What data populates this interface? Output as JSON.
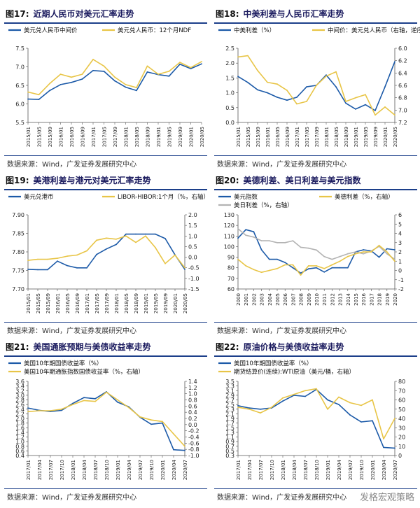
{
  "source": "数据来源：Wind，广发证券发展研究中心",
  "watermark": "发格宏观策略",
  "colors": {
    "blue": "#1c5aa8",
    "gold": "#e8c547",
    "gray": "#b3b3b3",
    "rule": "#1c3f8a"
  },
  "panels": [
    {
      "fig": "图17:",
      "title": "近期人民币对美元汇率走势",
      "legend": [
        "美元兑人民币中间价",
        "美元兑人民币：12个月NDF"
      ],
      "chart_data": {
        "type": "line",
        "x": [
          "2015/01",
          "2015/05",
          "2015/09",
          "2016/01",
          "2016/05",
          "2016/09",
          "2017/01",
          "2017/05",
          "2017/09",
          "2018/01",
          "2018/05",
          "2018/09",
          "2019/01",
          "2019/05",
          "2019/09",
          "2020/01",
          "2020/05"
        ],
        "xticks": [
          "2015/01",
          "2015/05",
          "2015/09",
          "2016/01",
          "2016/05",
          "2016/09",
          "2017/01",
          "2017/05",
          "2017/09",
          "2018/01",
          "2018/05",
          "2018/09",
          "2019/01",
          "2019/05",
          "2019/09",
          "2020/01",
          "2020/05"
        ],
        "ylim": [
          5.5,
          7.5
        ],
        "yticks": [
          5.5,
          6.0,
          6.5,
          7.0,
          7.5
        ],
        "series": [
          {
            "name": "美元兑人民币中间价",
            "color": "blue",
            "axis": "left",
            "values": [
              6.13,
              6.12,
              6.36,
              6.52,
              6.58,
              6.67,
              6.9,
              6.88,
              6.62,
              6.45,
              6.36,
              6.86,
              6.79,
              6.75,
              7.07,
              6.95,
              7.08
            ]
          },
          {
            "name": "美元兑人民币：12个月NDF",
            "color": "gold",
            "axis": "left",
            "values": [
              6.32,
              6.25,
              6.55,
              6.8,
              6.72,
              6.8,
              7.2,
              7.02,
              6.72,
              6.52,
              6.44,
              7.02,
              6.8,
              6.88,
              7.12,
              6.98,
              7.14
            ]
          }
        ]
      }
    },
    {
      "fig": "图18:",
      "title": "中美利差与人民币汇率走势",
      "legend": [
        "中美利差（%）",
        "中间价：美元兑人民币（右轴，逆序）"
      ],
      "chart_data": {
        "type": "line",
        "x": [
          "2015/01",
          "2015/05",
          "2015/09",
          "2016/01",
          "2016/05",
          "2016/09",
          "2017/01",
          "2017/05",
          "2017/09",
          "2018/01",
          "2018/05",
          "2018/09",
          "2019/01",
          "2019/05",
          "2019/09",
          "2020/01",
          "2020/05"
        ],
        "xticks": [
          "2015/01",
          "2015/05",
          "2015/09",
          "2016/01",
          "2016/05",
          "2016/09",
          "2017/01",
          "2017/05",
          "2017/09",
          "2018/01",
          "2018/05",
          "2018/09",
          "2019/01",
          "2019/05",
          "2019/09",
          "2020/01",
          "2020/05"
        ],
        "ylim": [
          0.0,
          2.5
        ],
        "yticks": [
          0.0,
          0.5,
          1.0,
          1.5,
          2.0,
          2.5
        ],
        "y2lim": [
          7.2,
          6.0
        ],
        "y2ticks": [
          6.0,
          6.2,
          6.4,
          6.6,
          6.8,
          7.0,
          7.2
        ],
        "series": [
          {
            "name": "中美利差（%）",
            "color": "blue",
            "axis": "left",
            "values": [
              1.55,
              1.35,
              1.1,
              1.0,
              0.85,
              0.75,
              0.85,
              1.2,
              1.25,
              1.6,
              1.2,
              0.65,
              0.45,
              0.6,
              0.4,
              1.2,
              2.05
            ]
          },
          {
            "name": "中间价：美元兑人民币（右轴，逆序）",
            "color": "gold",
            "axis": "right",
            "values": [
              6.14,
              6.12,
              6.36,
              6.55,
              6.58,
              6.68,
              6.9,
              6.86,
              6.6,
              6.45,
              6.38,
              6.86,
              6.8,
              6.75,
              7.08,
              6.95,
              7.08
            ]
          }
        ]
      }
    },
    {
      "fig": "图19:",
      "title": "美港利差与港元对美元汇率走势",
      "legend": [
        "美元兑港币",
        "LIBOR-HIBOR:1个月（%，右轴）"
      ],
      "chart_data": {
        "type": "line",
        "x": [
          "2015/01",
          "2015/05",
          "2015/09",
          "2016/01",
          "2016/05",
          "2016/09",
          "2017/01",
          "2017/05",
          "2017/09",
          "2018/01",
          "2018/05",
          "2018/09",
          "2019/01",
          "2019/05",
          "2019/09",
          "2020/01",
          "2020/05"
        ],
        "xticks": [
          "2015/01",
          "2015/05",
          "2015/09",
          "2016/01",
          "2016/05",
          "2016/09",
          "2017/01",
          "2017/05",
          "2017/09",
          "2018/01",
          "2018/05",
          "2018/09",
          "2019/01",
          "2019/05",
          "2019/09",
          "2020/01",
          "2020/05"
        ],
        "ylim": [
          7.7,
          7.9
        ],
        "yticks": [
          7.7,
          7.75,
          7.8,
          7.85,
          7.9
        ],
        "y2lim": [
          -1.5,
          2.0
        ],
        "y2ticks": [
          -1.5,
          -1.0,
          -0.5,
          0.0,
          0.5,
          1.0,
          1.5,
          2.0
        ],
        "series": [
          {
            "name": "美元兑港币",
            "color": "blue",
            "axis": "left",
            "values": [
              7.753,
              7.752,
              7.752,
              7.775,
              7.763,
              7.757,
              7.757,
              7.793,
              7.808,
              7.82,
              7.848,
              7.848,
              7.848,
              7.848,
              7.836,
              7.792,
              7.753
            ]
          },
          {
            "name": "LIBOR-HIBOR:1个月（%，右轴）",
            "color": "gold",
            "axis": "right",
            "values": [
              -0.15,
              -0.1,
              -0.1,
              -0.05,
              0.05,
              0.1,
              0.3,
              0.8,
              0.9,
              0.85,
              1.0,
              0.7,
              1.0,
              0.45,
              -0.3,
              0.1,
              -0.5
            ]
          }
        ]
      }
    },
    {
      "fig": "图20:",
      "title": "美德利差、美日利差与美元指数",
      "legend": [
        "美元指数",
        "美德利差（%，右轴）",
        "美日利差（%，右轴）"
      ],
      "chart_data": {
        "type": "line",
        "x": [
          "2000",
          "2001",
          "2002",
          "2003",
          "2004",
          "2005",
          "2006",
          "2007",
          "2008",
          "2009",
          "2010",
          "2011",
          "2012",
          "2013",
          "2014",
          "2015",
          "2016",
          "2017",
          "2018",
          "2019",
          "2020"
        ],
        "xticks": [
          "2000",
          "2001",
          "2002",
          "2003",
          "2004",
          "2005",
          "2006",
          "2007",
          "2008",
          "2009",
          "2010",
          "2011",
          "2012",
          "2013",
          "2014",
          "2015",
          "2016",
          "2017",
          "2018",
          "2019",
          "2020"
        ],
        "ylim": [
          60,
          130
        ],
        "yticks": [
          60,
          70,
          80,
          90,
          100,
          110,
          120,
          130
        ],
        "y2lim": [
          -2,
          6
        ],
        "y2ticks": [
          -2,
          -1,
          0,
          1,
          2,
          3,
          4,
          5,
          6
        ],
        "series": [
          {
            "name": "美元指数",
            "color": "blue",
            "axis": "left",
            "values": [
              108,
              116,
              114,
              97,
              88,
              88,
              85,
              80,
              75,
              79,
              80,
              76,
              80,
              80,
              80,
              95,
              97,
              96,
              90,
              98,
              97
            ]
          },
          {
            "name": "美德利差（%，右轴）",
            "color": "gold",
            "axis": "right",
            "values": [
              1.2,
              0.5,
              0.1,
              -0.2,
              0.0,
              0.2,
              0.6,
              0.6,
              -0.5,
              0.5,
              0.5,
              0.2,
              0.6,
              1.0,
              1.5,
              1.8,
              2.0,
              2.0,
              2.7,
              2.0,
              1.0
            ]
          },
          {
            "name": "美日利差（%，右轴）",
            "color": "gray",
            "axis": "right",
            "values": [
              4.5,
              3.8,
              3.6,
              3.2,
              3.2,
              3.0,
              3.0,
              3.2,
              2.5,
              2.4,
              2.2,
              1.5,
              1.2,
              1.5,
              1.8,
              2.0,
              1.8,
              2.1,
              2.6,
              1.8,
              1.2
            ]
          }
        ]
      }
    },
    {
      "fig": "图21:",
      "title": "美国通胀预期与美债收益率走势",
      "legend": [
        "美国10年期国债收益率（%）",
        "美国10年期通胀指数国债收益率（%，右轴）"
      ],
      "chart_data": {
        "type": "line",
        "x": [
          "2017/01",
          "2017/04",
          "2017/07",
          "2017/10",
          "2018/01",
          "2018/04",
          "2018/07",
          "2018/10",
          "2019/01",
          "2019/04",
          "2019/07",
          "2019/10",
          "2020/01",
          "2020/04",
          "2020/07"
        ],
        "xticks": [
          "2017/01",
          "2017/04",
          "2017/07",
          "2017/10",
          "2018/01",
          "2018/04",
          "2018/07",
          "2018/10",
          "2019/01",
          "2019/04",
          "2019/07",
          "2019/10",
          "2020/01",
          "2020/04",
          "2020/07"
        ],
        "ylim": [
          0.4,
          3.6
        ],
        "yticks": [
          0.4,
          0.6,
          0.8,
          1.0,
          1.2,
          1.4,
          1.6,
          1.8,
          2.0,
          2.2,
          2.4,
          2.6,
          2.8,
          3.0,
          3.2,
          3.4,
          3.6
        ],
        "y2lim": [
          -1.0,
          1.4
        ],
        "y2ticks": [
          -1.0,
          -0.8,
          -0.6,
          -0.4,
          -0.2,
          0.0,
          0.2,
          0.4,
          0.6,
          0.8,
          1.0,
          1.2,
          1.4
        ],
        "series": [
          {
            "name": "美国10年期国债收益率（%）",
            "color": "blue",
            "axis": "left",
            "values": [
              2.45,
              2.35,
              2.3,
              2.35,
              2.65,
              2.9,
              2.85,
              3.15,
              2.7,
              2.5,
              2.05,
              1.75,
              1.8,
              0.65,
              0.62
            ]
          },
          {
            "name": "美国10年期通胀指数国债收益率（%，右轴）",
            "color": "gold",
            "axis": "right",
            "values": [
              0.42,
              0.45,
              0.45,
              0.5,
              0.65,
              0.78,
              0.75,
              1.05,
              0.8,
              0.55,
              0.25,
              0.15,
              0.1,
              -0.3,
              -0.7
            ]
          }
        ]
      }
    },
    {
      "fig": "图22:",
      "title": "原油价格与美债收益率走势",
      "legend": [
        "美国10年期国债收益率（%）",
        "期货结算价(连续):WTI原油（美元/桶，右轴）"
      ],
      "chart_data": {
        "type": "line",
        "x": [
          "2017/01",
          "2017/04",
          "2017/07",
          "2017/10",
          "2018/01",
          "2018/04",
          "2018/07",
          "2018/10",
          "2019/01",
          "2019/04",
          "2019/07",
          "2019/10",
          "2020/01",
          "2020/04",
          "2020/07"
        ],
        "xticks": [
          "2017/01",
          "2017/04",
          "2017/07",
          "2017/10",
          "2018/01",
          "2018/04",
          "2018/07",
          "2018/10",
          "2019/01",
          "2019/04",
          "2019/07",
          "2019/10",
          "2020/01",
          "2020/04",
          "2020/07"
        ],
        "ylim": [
          0.3,
          3.5
        ],
        "yticks": [
          0.3,
          0.5,
          0.7,
          0.9,
          1.1,
          1.3,
          1.5,
          1.7,
          1.9,
          2.1,
          2.3,
          2.5,
          2.7,
          2.9,
          3.1,
          3.3,
          3.5
        ],
        "y2lim": [
          0,
          80
        ],
        "y2ticks": [
          0,
          10,
          20,
          30,
          40,
          50,
          60,
          70,
          80
        ],
        "series": [
          {
            "name": "美国10年期国债收益率（%）",
            "color": "blue",
            "axis": "left",
            "values": [
              2.45,
              2.35,
              2.3,
              2.35,
              2.65,
              2.9,
              2.85,
              3.15,
              2.7,
              2.5,
              2.05,
              1.75,
              1.8,
              0.65,
              0.62
            ]
          },
          {
            "name": "期货结算价(连续):WTI原油（美元/桶，右轴）",
            "color": "gold",
            "axis": "right",
            "values": [
              52,
              50,
              46,
              52,
              62,
              66,
              70,
              72,
              50,
              63,
              57,
              54,
              60,
              18,
              40
            ]
          }
        ]
      }
    }
  ]
}
